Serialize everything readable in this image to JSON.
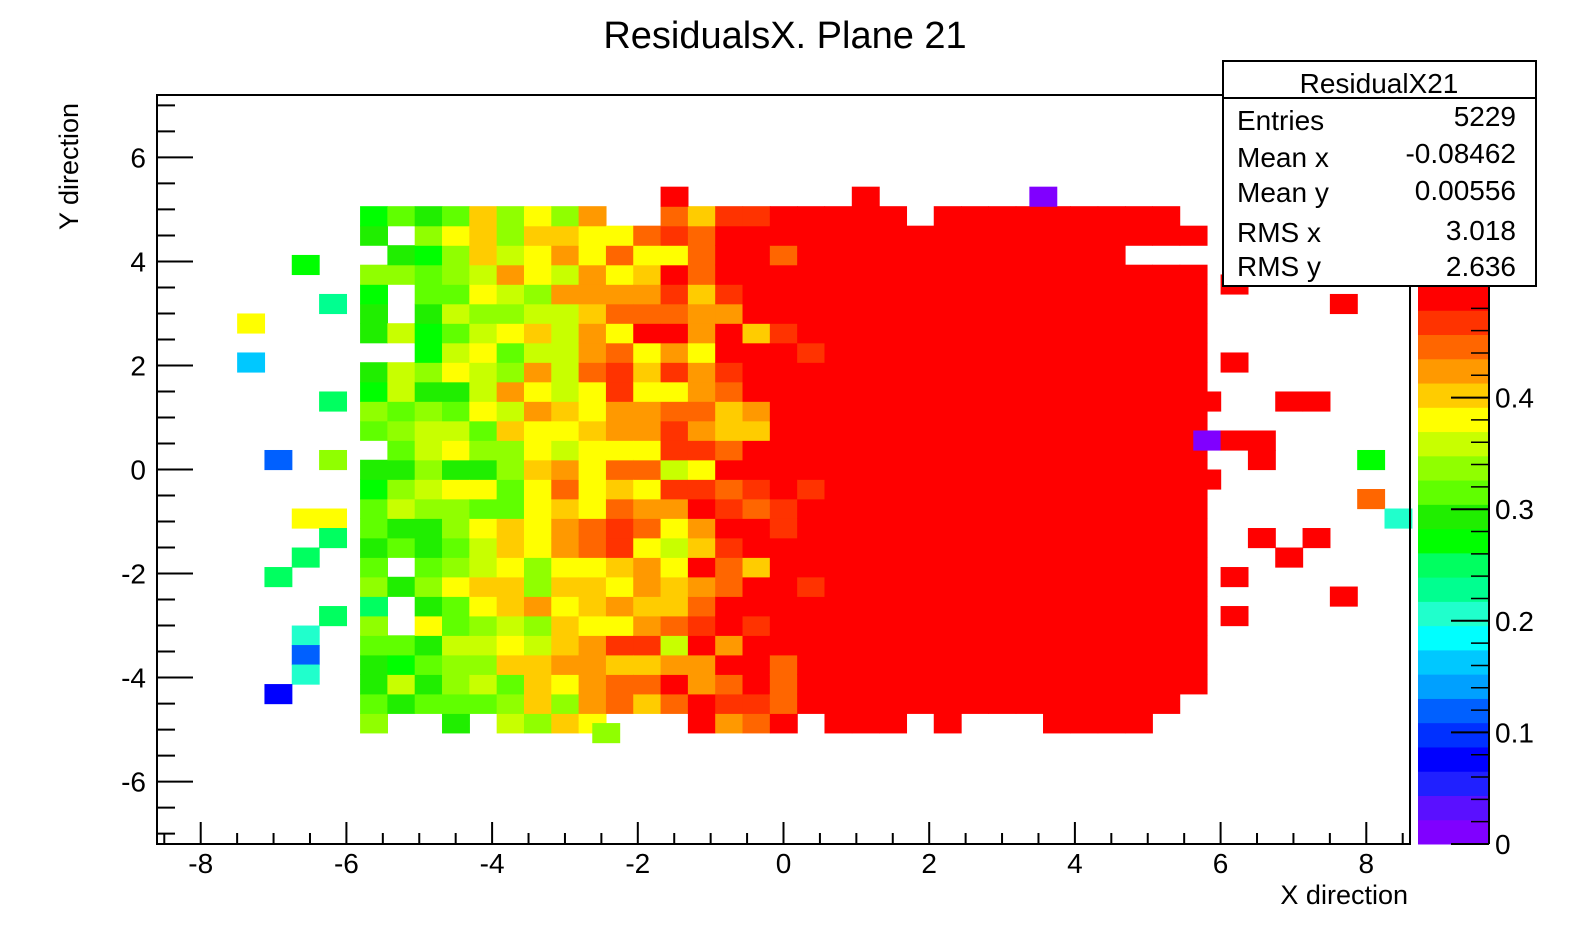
{
  "chart_data": {
    "type": "heatmap",
    "title": "ResidualsX. Plane 21",
    "xlabel": "X direction",
    "ylabel": "Y direction",
    "xlim": [
      -8.6,
      8.6
    ],
    "ylim": [
      -7.2,
      7.2
    ],
    "x_ticks": [
      -8,
      -6,
      -4,
      -2,
      0,
      2,
      4,
      6,
      8
    ],
    "x_tick_labels": [
      "-8",
      "-6",
      "-4",
      "-2",
      "0",
      "2",
      "4",
      "6",
      "8"
    ],
    "y_ticks": [
      -6,
      -4,
      -2,
      0,
      2,
      4,
      6
    ],
    "y_tick_labels": [
      "-6",
      "-4",
      "-2",
      "0",
      "2",
      "4",
      "6"
    ],
    "bin_width_x": 0.375,
    "bin_width_y": 0.375,
    "colorbar": {
      "min": 0,
      "max": 0.5,
      "ticks": [
        0,
        0.1,
        0.2,
        0.3,
        0.4
      ],
      "tick_labels": [
        "0",
        "0.1",
        "0.2",
        "0.3",
        "0.4"
      ],
      "palette": [
        "#8000ff",
        "#5a10ff",
        "#2020ff",
        "#0000ff",
        "#0030ff",
        "#0060ff",
        "#00a0ff",
        "#00c8ff",
        "#00ffff",
        "#20ffcc",
        "#00ff90",
        "#00ff60",
        "#00ff00",
        "#20ee00",
        "#60ff00",
        "#90ff00",
        "#c8ff00",
        "#ffff00",
        "#ffcc00",
        "#ff9900",
        "#ff6600",
        "#ff3300",
        "#ff0000"
      ]
    },
    "stats_box": {
      "title": "ResidualX21",
      "rows": [
        {
          "label": "Entries",
          "value": "5229"
        },
        {
          "label": "Mean x",
          "value": "-0.08462"
        },
        {
          "label": "Mean y",
          "value": "0.00556"
        },
        {
          "label": "RMS x",
          "value": "3.018"
        },
        {
          "label": "RMS y",
          "value": "2.636"
        }
      ]
    },
    "core_region": {
      "x_range": [
        -5.625,
        5.625
      ],
      "y_range": [
        -4.875,
        4.875
      ],
      "value_model": "value decreases from about 0.5 at x >= 0 to about 0.3 at x = -5.6; seeded variation",
      "missing_bins": [
        [
          -5.625,
          4.125
        ],
        [
          -5.25,
          4.5
        ],
        [
          -5.25,
          3.375
        ],
        [
          -5.25,
          3.0
        ],
        [
          -5.625,
          2.25
        ],
        [
          -5.25,
          2.25
        ],
        [
          -5.625,
          0.375
        ],
        [
          -5.25,
          -2.625
        ],
        [
          -5.25,
          -3.0
        ],
        [
          -5.25,
          -1.875
        ],
        [
          -5.25,
          -4.875
        ],
        [
          -4.875,
          -4.875
        ],
        [
          -4.125,
          -4.875
        ],
        [
          -2.25,
          -4.875
        ],
        [
          -1.875,
          -4.875
        ],
        [
          -1.5,
          -4.875
        ],
        [
          0.375,
          -4.875
        ],
        [
          1.875,
          -4.875
        ],
        [
          2.625,
          -4.875
        ],
        [
          3.0,
          -4.875
        ],
        [
          3.375,
          -4.875
        ],
        [
          5.25,
          -4.875
        ],
        [
          5.625,
          -4.875
        ],
        [
          4.875,
          4.125
        ],
        [
          5.25,
          4.125
        ],
        [
          5.625,
          4.125
        ],
        [
          5.625,
          -4.5
        ],
        [
          -2.25,
          4.875
        ],
        [
          -1.875,
          4.875
        ],
        [
          1.875,
          4.875
        ],
        [
          5.625,
          4.875
        ]
      ]
    },
    "outlier_bins": [
      {
        "x": -1.5,
        "y": 5.25,
        "v": 0.5
      },
      {
        "x": 1.125,
        "y": 5.25,
        "v": 0.5
      },
      {
        "x": 3.5625,
        "y": 5.25,
        "v": 0.02
      },
      {
        "x": -7.3125,
        "y": 2.8125,
        "v": 0.38
      },
      {
        "x": -7.3125,
        "y": 2.0625,
        "v": 0.17
      },
      {
        "x": -6.1875,
        "y": 3.1875,
        "v": 0.22
      },
      {
        "x": -6.5625,
        "y": 3.9375,
        "v": 0.27
      },
      {
        "x": -6.9375,
        "y": 0.1875,
        "v": 0.12
      },
      {
        "x": -6.1875,
        "y": 0.1875,
        "v": 0.33
      },
      {
        "x": -6.5625,
        "y": -0.9375,
        "v": 0.38
      },
      {
        "x": -6.1875,
        "y": -0.9375,
        "v": 0.37
      },
      {
        "x": -6.5625,
        "y": -1.6875,
        "v": 0.24
      },
      {
        "x": -6.9375,
        "y": -2.0625,
        "v": 0.25
      },
      {
        "x": -6.1875,
        "y": -2.8125,
        "v": 0.24
      },
      {
        "x": -6.5625,
        "y": -3.1875,
        "v": 0.2
      },
      {
        "x": -6.5625,
        "y": -3.5625,
        "v": 0.12
      },
      {
        "x": -6.5625,
        "y": -3.9375,
        "v": 0.2
      },
      {
        "x": -6.9375,
        "y": -4.3125,
        "v": 0.07
      },
      {
        "x": -6.1875,
        "y": -1.3125,
        "v": 0.24
      },
      {
        "x": -6.1875,
        "y": 1.3125,
        "v": 0.24
      },
      {
        "x": -2.4375,
        "y": -5.0625,
        "v": 0.34
      },
      {
        "x": 5.8125,
        "y": 1.3125,
        "v": 0.5
      },
      {
        "x": 5.8125,
        "y": 0.5625,
        "v": 0.02
      },
      {
        "x": 5.8125,
        "y": -0.1875,
        "v": 0.5
      },
      {
        "x": 6.1875,
        "y": 0.5625,
        "v": 0.5
      },
      {
        "x": 6.5625,
        "y": 0.5625,
        "v": 0.5
      },
      {
        "x": 6.5625,
        "y": 0.1875,
        "v": 0.5
      },
      {
        "x": 6.1875,
        "y": 2.0625,
        "v": 0.5
      },
      {
        "x": 6.1875,
        "y": 3.5625,
        "v": 0.5
      },
      {
        "x": 7.6875,
        "y": 3.1875,
        "v": 0.5
      },
      {
        "x": 6.9375,
        "y": 1.3125,
        "v": 0.5
      },
      {
        "x": 7.3125,
        "y": 1.3125,
        "v": 0.5
      },
      {
        "x": 6.5625,
        "y": -1.3125,
        "v": 0.5
      },
      {
        "x": 6.9375,
        "y": -1.6875,
        "v": 0.5
      },
      {
        "x": 7.3125,
        "y": -1.3125,
        "v": 0.5
      },
      {
        "x": 6.1875,
        "y": -2.0625,
        "v": 0.5
      },
      {
        "x": 7.6875,
        "y": -2.4375,
        "v": 0.5
      },
      {
        "x": 6.1875,
        "y": -2.8125,
        "v": 0.5
      },
      {
        "x": 8.0625,
        "y": 0.1875,
        "v": 0.27
      },
      {
        "x": 8.0625,
        "y": -0.5625,
        "v": 0.45
      },
      {
        "x": 8.4375,
        "y": -0.9375,
        "v": 0.2
      }
    ]
  }
}
